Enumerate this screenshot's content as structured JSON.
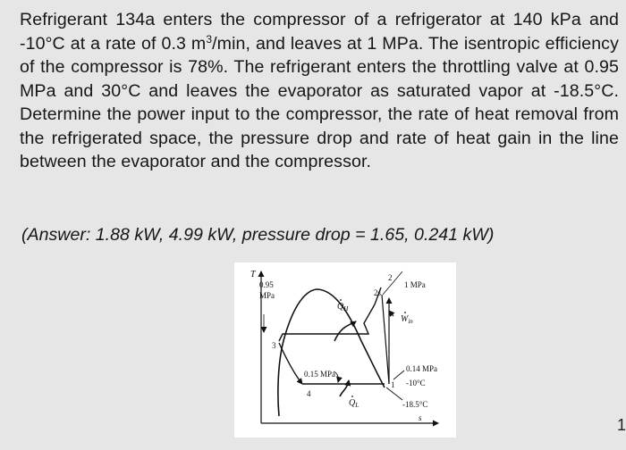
{
  "problem": {
    "line1": "Refrigerant 134a enters the compressor of a refrigerator at 140 kPa and -10°C at a rate of 0.3 m",
    "sup": "3",
    "line2": "/min, and leaves at 1 MPa. The isentropic efficiency of the compressor is 78%. The refrigerant enters the throttling valve at 0.95 MPa and 30°C and leaves the evaporator as saturated vapor at -18.5°C. Determine the power input to the compressor, the rate of heat removal from the refrigerated space, the pressure drop and rate of heat gain in the line between the evaporator and the compressor."
  },
  "answer": {
    "text": "(Answer: 1.88 kW, 4.99 kW, pressure drop = 1.65, 0.241 kW)"
  },
  "diagram": {
    "axis_t": "T",
    "axis_s": "s",
    "label_095_line1": "0.95",
    "label_095_line2": "MPa",
    "label_1mpa": "1 MPa",
    "label_015mpa": "0.15 MPa",
    "label_014mpa": "0.14 MPa",
    "label_m10c": "-10°C",
    "label_m185c": "-18.5°C",
    "state_1": "1",
    "state_2": "2",
    "state_2s": "2s",
    "state_3": "3",
    "state_4": "4",
    "qh_main": "Q",
    "qh_sub": "H",
    "ql_main": "Q",
    "ql_sub": "L",
    "win_main": "W",
    "win_sub": "in"
  },
  "edge_mark": "1"
}
